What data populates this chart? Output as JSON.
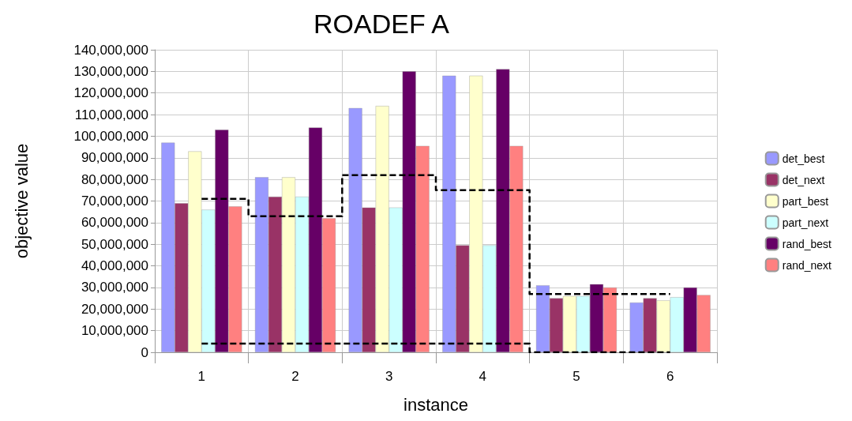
{
  "chart_data": {
    "type": "bar",
    "title": "ROADEF A",
    "xlabel": "instance",
    "ylabel": "objective value",
    "categories": [
      "1",
      "2",
      "3",
      "4",
      "5",
      "6"
    ],
    "series": [
      {
        "name": "det_best",
        "color": "#9999ff",
        "values": [
          97000000,
          81000000,
          113000000,
          128000000,
          31000000,
          23000000
        ]
      },
      {
        "name": "det_next",
        "color": "#993366",
        "values": [
          69000000,
          72000000,
          67000000,
          49500000,
          25000000,
          25000000
        ]
      },
      {
        "name": "part_best",
        "color": "#ffffcc",
        "values": [
          93000000,
          81000000,
          114000000,
          128000000,
          26000000,
          24000000
        ]
      },
      {
        "name": "part_next",
        "color": "#ccffff",
        "values": [
          66000000,
          72000000,
          67000000,
          49500000,
          26000000,
          25500000
        ]
      },
      {
        "name": "rand_best",
        "color": "#660066",
        "values": [
          103000000,
          104000000,
          130000000,
          131000000,
          31500000,
          30000000
        ]
      },
      {
        "name": "rand_next",
        "color": "#ff8080",
        "values": [
          67500000,
          62000000,
          95500000,
          95500000,
          30000000,
          26500000
        ]
      },
      {
        "type": "step",
        "line_style": "dashed",
        "color": "#000000",
        "values": [
          71000000,
          63000000,
          82000000,
          75000000,
          27000000,
          27000000
        ]
      },
      {
        "type": "step",
        "line_style": "dashed",
        "color": "#000000",
        "values": [
          4000000,
          4000000,
          4000000,
          4000000,
          0,
          0
        ]
      }
    ],
    "ylim": [
      0,
      140000000
    ],
    "yticks": [
      0,
      {
        "value": 10000000,
        "label": "10,000,000"
      },
      {
        "value": 20000000,
        "label": "20,000,000"
      },
      {
        "value": 30000000,
        "label": "30,000,000"
      },
      {
        "value": 40000000,
        "label": "40,000,000"
      },
      {
        "value": 50000000,
        "label": "50,000,000"
      },
      {
        "value": 60000000,
        "label": "60,000,000"
      },
      {
        "value": 70000000,
        "label": "70,000,000"
      },
      {
        "value": 80000000,
        "label": "80,000,000"
      },
      {
        "value": 90000000,
        "label": "90,000,000"
      },
      {
        "value": 100000000,
        "label": "100,000,000"
      },
      {
        "value": 110000000,
        "label": "110,000,000"
      },
      {
        "value": 120000000,
        "label": "120,000,000"
      },
      {
        "value": 130000000,
        "label": "130,000,000"
      },
      {
        "value": 140000000,
        "label": "140,000,000"
      }
    ],
    "grid": true,
    "legend": "right"
  }
}
